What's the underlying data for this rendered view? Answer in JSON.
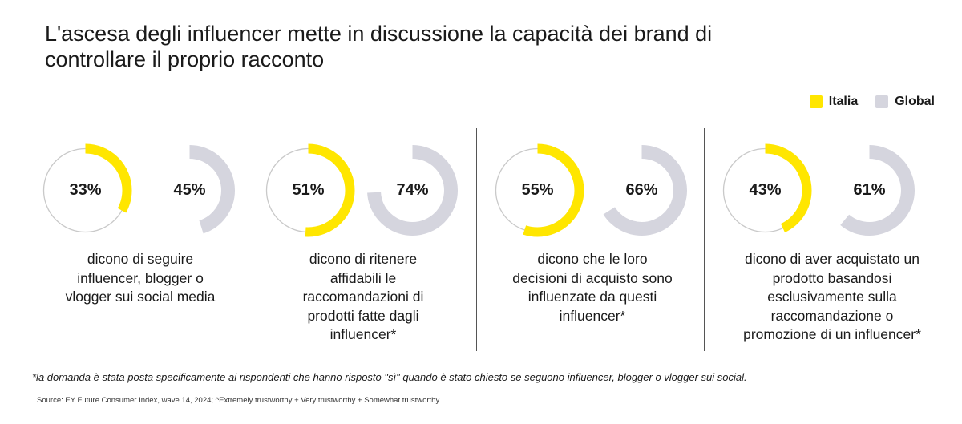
{
  "title": "L'ascesa degli influencer mette in discussione la capacità dei brand di controllare il proprio racconto",
  "legend": [
    {
      "name": "Italia",
      "color": "#ffe600"
    },
    {
      "name": "Global",
      "color": "#d5d5de"
    }
  ],
  "colors": {
    "track": "#c9c9c9",
    "italia": "#ffe600",
    "global": "#d5d5de"
  },
  "chart_data": {
    "type": "pie",
    "subtype": "donut",
    "series": [
      {
        "name": "Italia",
        "values": [
          33,
          51,
          55,
          43
        ]
      },
      {
        "name": "Global",
        "values": [
          45,
          74,
          66,
          61
        ]
      }
    ],
    "panels": [
      {
        "italia": 33,
        "global": 45,
        "italia_label": "33%",
        "global_label": "45%",
        "caption": "dicono di seguire\ninfluencer, blogger o\nvlogger sui social media"
      },
      {
        "italia": 51,
        "global": 74,
        "italia_label": "51%",
        "global_label": "74%",
        "caption": "dicono di ritenere\naffidabili le\nraccomandazioni di\nprodotti fatte dagli\ninfluencer*"
      },
      {
        "italia": 55,
        "global": 66,
        "italia_label": "55%",
        "global_label": "66%",
        "caption": "dicono che le loro\ndecisioni di acquisto sono\ninfluenzate da questi\ninfluencer*"
      },
      {
        "italia": 43,
        "global": 61,
        "italia_label": "43%",
        "global_label": "61%",
        "caption": "dicono di aver acquistato un\nprodotto basandosi\nesclusivamente sulla\nraccomandazione o\npromozione di un influencer*"
      }
    ]
  },
  "footnote": "*la domanda è stata posta specificamente ai rispondenti che hanno risposto \"sì\" quando è stato chiesto se seguono influencer, blogger o vlogger sui social.",
  "source": "Source: EY Future Consumer Index, wave 14, 2024; ^Extremely trustworthy + Very trustworthy + Somewhat trustworthy"
}
